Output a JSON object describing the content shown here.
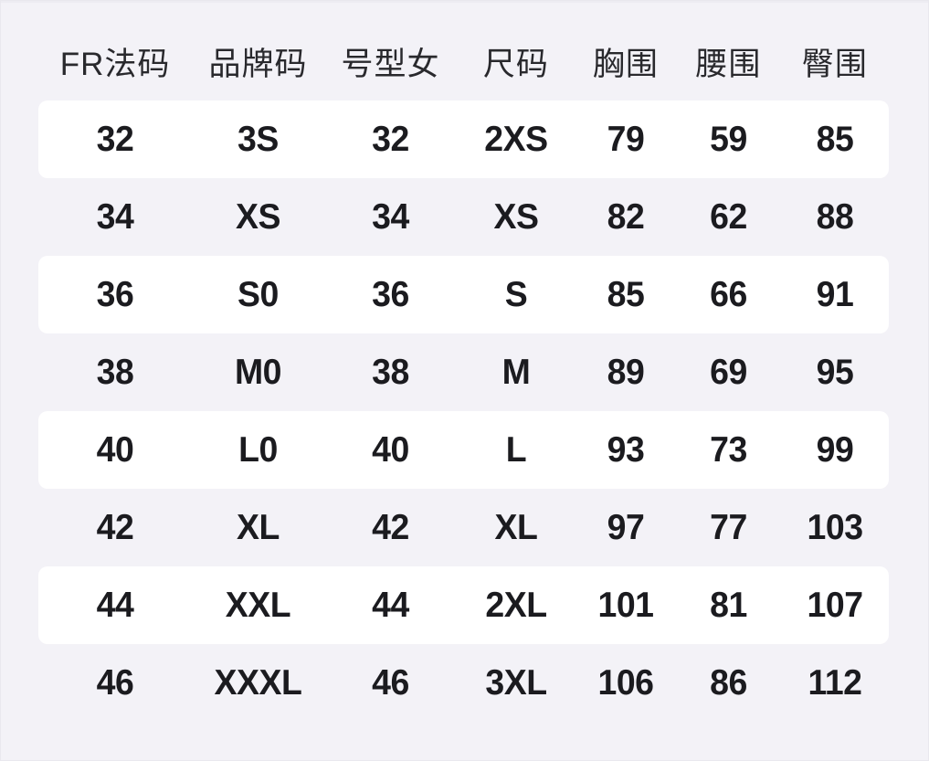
{
  "title": "women-size-conversion-chart",
  "colors": {
    "page_background": "#f3f2f7",
    "row_band_background": "#ffffff",
    "header_text": "#29292d",
    "data_text": "#1b1b1f"
  },
  "table": {
    "columns": [
      {
        "key": "fr-size",
        "label": "FR法码"
      },
      {
        "key": "brand-code",
        "label": "品牌码"
      },
      {
        "key": "size-type",
        "label": "号型女"
      },
      {
        "key": "size",
        "label": "尺码"
      },
      {
        "key": "bust",
        "label": "胸围"
      },
      {
        "key": "waist",
        "label": "腰围"
      },
      {
        "key": "hip",
        "label": "臀围"
      }
    ],
    "rows": [
      [
        "32",
        "3S",
        "32",
        "2XS",
        "79",
        "59",
        "85"
      ],
      [
        "34",
        "XS",
        "34",
        "XS",
        "82",
        "62",
        "88"
      ],
      [
        "36",
        "S0",
        "36",
        "S",
        "85",
        "66",
        "91"
      ],
      [
        "38",
        "M0",
        "38",
        "M",
        "89",
        "69",
        "95"
      ],
      [
        "40",
        "L0",
        "40",
        "L",
        "93",
        "73",
        "99"
      ],
      [
        "42",
        "XL",
        "42",
        "XL",
        "97",
        "77",
        "103"
      ],
      [
        "44",
        "XXL",
        "44",
        "2XL",
        "101",
        "81",
        "107"
      ],
      [
        "46",
        "XXXL",
        "46",
        "3XL",
        "106",
        "86",
        "112"
      ]
    ]
  },
  "chart_data": {
    "type": "table",
    "title": "",
    "columns": [
      "FR法码",
      "品牌码",
      "号型女",
      "尺码",
      "胸围",
      "腰围",
      "臀围"
    ],
    "rows": [
      [
        "32",
        "3S",
        "32",
        "2XS",
        79,
        59,
        85
      ],
      [
        "34",
        "XS",
        "34",
        "XS",
        82,
        62,
        88
      ],
      [
        "36",
        "S0",
        "36",
        "S",
        85,
        66,
        91
      ],
      [
        "38",
        "M0",
        "38",
        "M",
        89,
        69,
        95
      ],
      [
        "40",
        "L0",
        "40",
        "L",
        93,
        73,
        99
      ],
      [
        "42",
        "XL",
        "42",
        "XL",
        97,
        77,
        103
      ],
      [
        "44",
        "XXL",
        "44",
        "2XL",
        101,
        81,
        107
      ],
      [
        "46",
        "XXXL",
        "46",
        "3XL",
        106,
        86,
        112
      ]
    ],
    "layout_hints": {
      "alternating_rows": "odd rows white rounded bands, even rows page background",
      "text_align": "center",
      "grid": "off"
    }
  }
}
